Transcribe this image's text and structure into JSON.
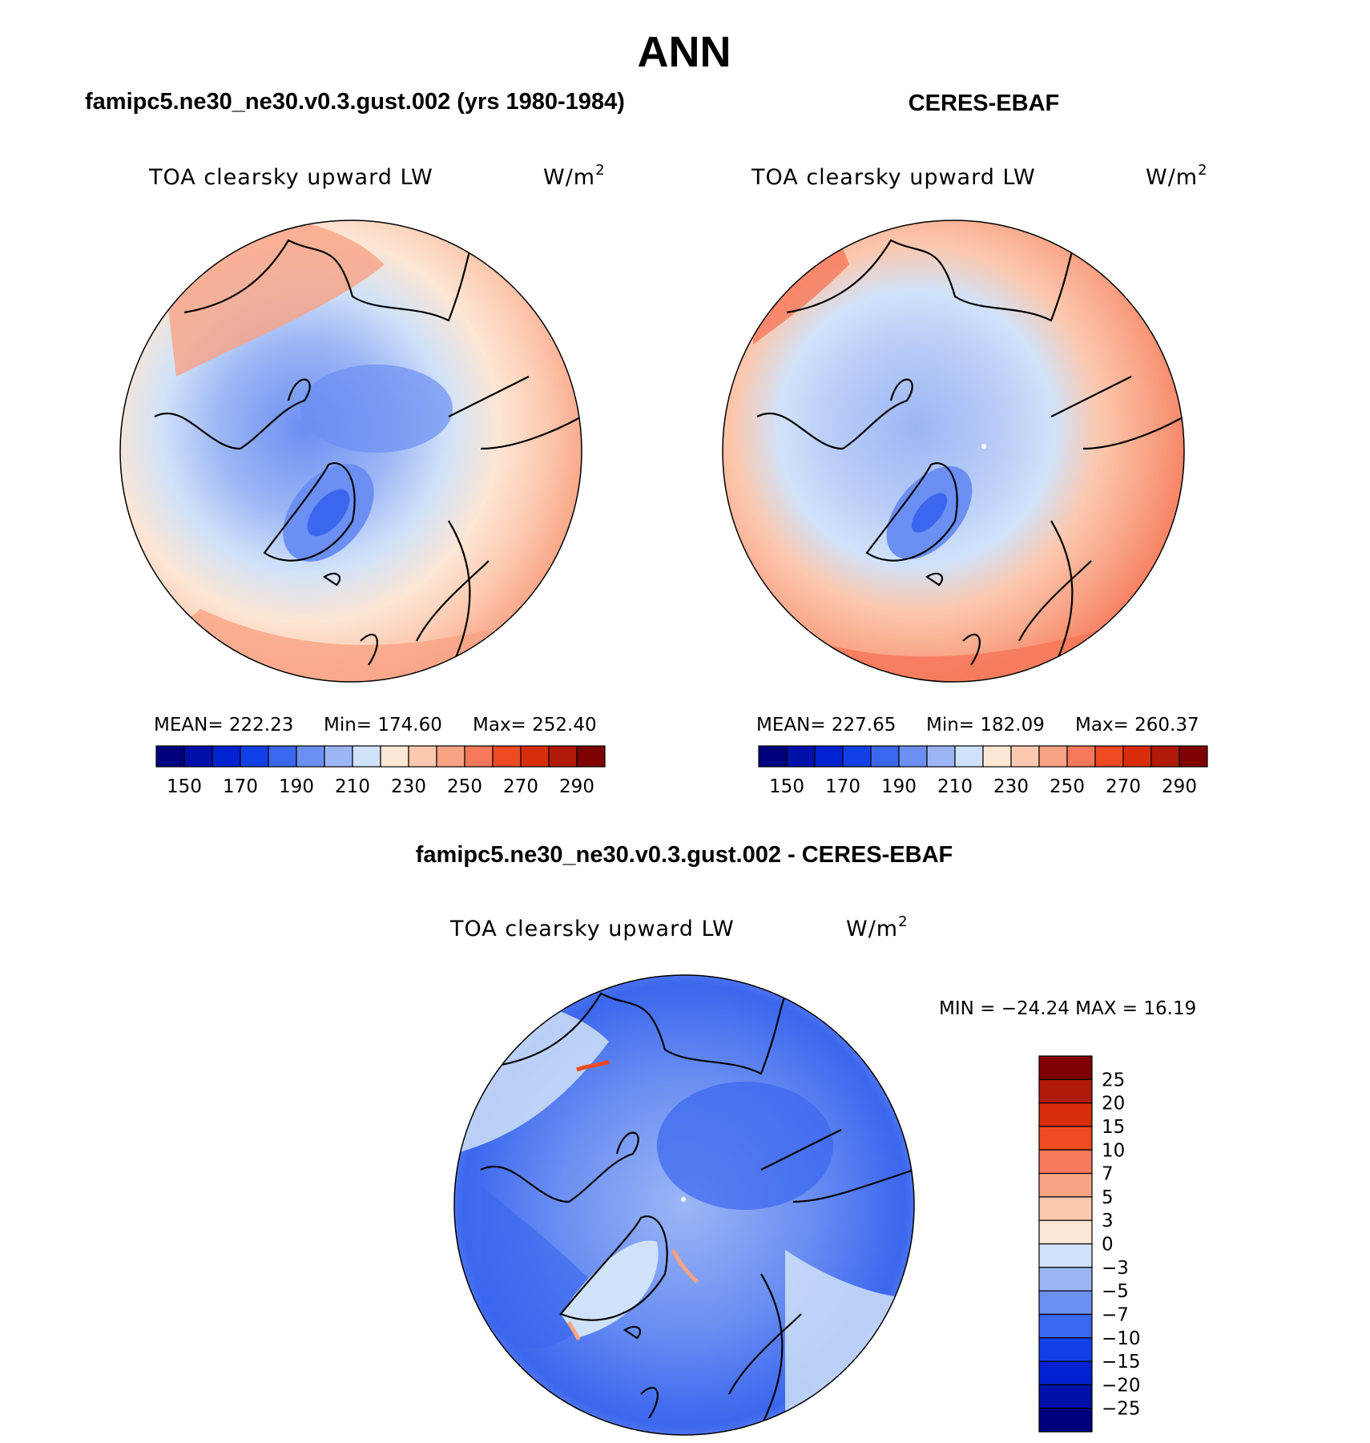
{
  "title": "ANN",
  "colors": {
    "ocean_line": "#000000",
    "abs_levels": [
      "#00007f",
      "#0011a8",
      "#0022d0",
      "#1240e8",
      "#3b66ee",
      "#6b8ff2",
      "#9cb6f5",
      "#d0e2f9",
      "#fde6d4",
      "#fcc8ae",
      "#f9a385",
      "#f7785a",
      "#f04a22",
      "#d82d0a",
      "#b01a0a",
      "#7f0000"
    ],
    "diff_levels": [
      "#00007f",
      "#0011a8",
      "#0022d0",
      "#1240e8",
      "#3b66ee",
      "#6b8ff2",
      "#9cb6f5",
      "#d0e2f9",
      "#fde6d4",
      "#fcc8ae",
      "#f9a385",
      "#f7785a",
      "#f04a22",
      "#d82d0a",
      "#b01a0a",
      "#7f0000"
    ]
  },
  "panels": {
    "model": {
      "case_title": "famipc5.ne30_ne30.v0.3.gust.002 (yrs 1980-1984)",
      "variable": "TOA clearsky upward LW",
      "units": "W/m",
      "units_sup": "2",
      "mean_label": "MEAN=",
      "mean": "222.23",
      "min_label": "Min=",
      "min": "174.60",
      "max_label": "Max=",
      "max": "252.40",
      "ticks": [
        "150",
        "170",
        "190",
        "210",
        "230",
        "250",
        "270",
        "290"
      ]
    },
    "obs": {
      "case_title": "CERES-EBAF",
      "variable": "TOA clearsky upward LW",
      "units": "W/m",
      "units_sup": "2",
      "mean_label": "MEAN=",
      "mean": "227.65",
      "min_label": "Min=",
      "min": "182.09",
      "max_label": "Max=",
      "max": "260.37",
      "ticks": [
        "150",
        "170",
        "190",
        "210",
        "230",
        "250",
        "270",
        "290"
      ]
    },
    "diff": {
      "case_title": "famipc5.ne30_ne30.v0.3.gust.002 - CERES-EBAF",
      "variable": "TOA clearsky upward LW",
      "units": "W/m",
      "units_sup": "2",
      "minmax": "MIN = −24.24 MAX =   16.19",
      "ticks": [
        "25",
        "20",
        "15",
        "10",
        "7",
        "5",
        "3",
        "0",
        "−3",
        "−5",
        "−7",
        "−10",
        "−15",
        "−20",
        "−25"
      ]
    }
  }
}
